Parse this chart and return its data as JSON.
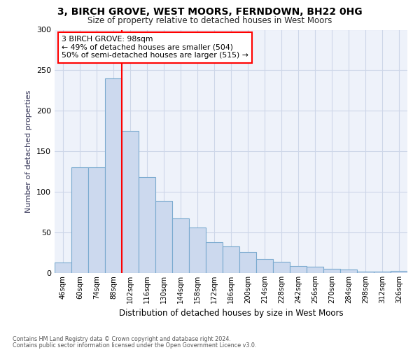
{
  "title": "3, BIRCH GROVE, WEST MOORS, FERNDOWN, BH22 0HG",
  "subtitle": "Size of property relative to detached houses in West Moors",
  "xlabel": "Distribution of detached houses by size in West Moors",
  "ylabel": "Number of detached properties",
  "bar_color": "#ccd9ee",
  "bar_edge_color": "#7aaacf",
  "bar_heights": [
    13,
    130,
    130,
    240,
    175,
    118,
    89,
    67,
    56,
    38,
    33,
    26,
    17,
    14,
    9,
    8,
    5,
    4,
    2,
    2,
    3
  ],
  "x_labels": [
    "46sqm",
    "60sqm",
    "74sqm",
    "88sqm",
    "102sqm",
    "116sqm",
    "130sqm",
    "144sqm",
    "158sqm",
    "172sqm",
    "186sqm",
    "200sqm",
    "214sqm",
    "228sqm",
    "242sqm",
    "256sqm",
    "270sqm",
    "284sqm",
    "298sqm",
    "312sqm",
    "326sqm"
  ],
  "ylim": [
    0,
    300
  ],
  "yticks": [
    0,
    50,
    100,
    150,
    200,
    250,
    300
  ],
  "annotation_text": "3 BIRCH GROVE: 98sqm\n← 49% of detached houses are smaller (504)\n50% of semi-detached houses are larger (515) →",
  "footer1": "Contains HM Land Registry data © Crown copyright and database right 2024.",
  "footer2": "Contains public sector information licensed under the Open Government Licence v3.0.",
  "background_color": "#eef2fa",
  "grid_color": "#cdd6e8",
  "title_fontsize": 10,
  "subtitle_fontsize": 8.5
}
